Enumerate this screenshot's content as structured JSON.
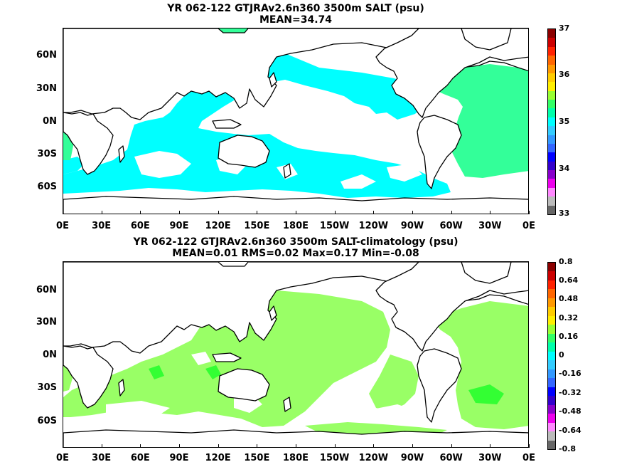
{
  "panels": [
    {
      "id": "salt",
      "title_line1": "YR 062-122 GTJRAv2.6n360 3500m SALT (psu)",
      "title_line2": "MEAN=34.74",
      "colorbar": {
        "labels": [
          "37",
          "36",
          "35",
          "34",
          "33"
        ],
        "colors": [
          "#8b0000",
          "#cc0000",
          "#ff2200",
          "#ff6600",
          "#ff9900",
          "#ffcc00",
          "#ffee00",
          "#99ff33",
          "#33ff66",
          "#00ffaa",
          "#00ffff",
          "#33ccff",
          "#3399ff",
          "#3366ff",
          "#0000ff",
          "#3300cc",
          "#8800cc",
          "#ee00ee",
          "#ff88ff",
          "#bbbbbb",
          "#666666"
        ],
        "ocean_primary": "#00ffff",
        "ocean_secondary": "#33ff99"
      }
    },
    {
      "id": "salt-clim",
      "title_line1": "YR 062-122 GTJRAv2.6n360 3500m SALT-climatology (psu)",
      "title_line2": "MEAN=0.01   RMS=0.02   Max=0.17   Min=-0.08",
      "colorbar": {
        "labels": [
          "0.8",
          "0.64",
          "0.48",
          "0.32",
          "0.16",
          "0",
          "-0.16",
          "-0.32",
          "-0.48",
          "-0.64",
          "-0.8"
        ],
        "colors": [
          "#8b0000",
          "#cc0000",
          "#ff2200",
          "#ff6600",
          "#ff9900",
          "#ffcc00",
          "#ffee00",
          "#99ff33",
          "#33ff66",
          "#00ffaa",
          "#00ffff",
          "#33ccff",
          "#3399ff",
          "#3366ff",
          "#0000ff",
          "#3300cc",
          "#8800cc",
          "#ee00ee",
          "#ff88ff",
          "#bbbbbb",
          "#666666"
        ],
        "ocean_primary": "#99ff66",
        "ocean_secondary": "#33ff33"
      }
    }
  ],
  "axes": {
    "lat_labels": [
      "60N",
      "30N",
      "0N",
      "30S",
      "60S"
    ],
    "lon_labels": [
      "0E",
      "30E",
      "60E",
      "90E",
      "120E",
      "150E",
      "180E",
      "150W",
      "120W",
      "90W",
      "60W",
      "30W",
      "0E"
    ]
  }
}
